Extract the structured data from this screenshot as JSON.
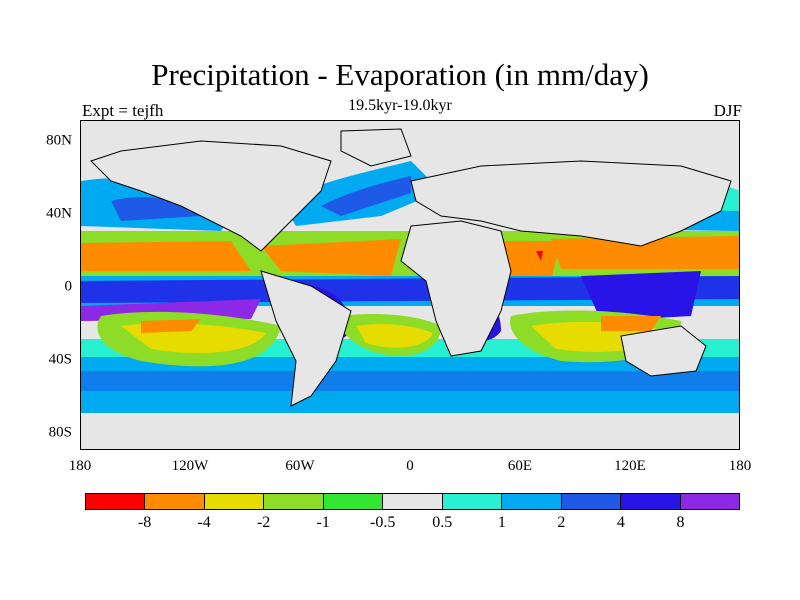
{
  "title": "Precipitation - Evaporation (in mm/day)",
  "subtitle": "19.5kyr-19.0kyr",
  "left_label": "Expt = tejfh",
  "right_label": "DJF",
  "lat_labels": [
    "80N",
    "40N",
    "0",
    "40S",
    "80S"
  ],
  "lon_labels": [
    "180",
    "120W",
    "60W",
    "0",
    "60E",
    "120E",
    "180"
  ],
  "colorbar": {
    "colors": [
      "#ff0000",
      "#ff8c00",
      "#e6dc00",
      "#8cdc28",
      "#32e632",
      "#e6e6e6",
      "#28f0d2",
      "#00aaf0",
      "#1e5ae6",
      "#2814e6",
      "#8c28e6"
    ],
    "labels": [
      "-8",
      "-4",
      "-2",
      "-1",
      "-0.5",
      "0.5",
      "1",
      "2",
      "4",
      "8"
    ]
  }
}
